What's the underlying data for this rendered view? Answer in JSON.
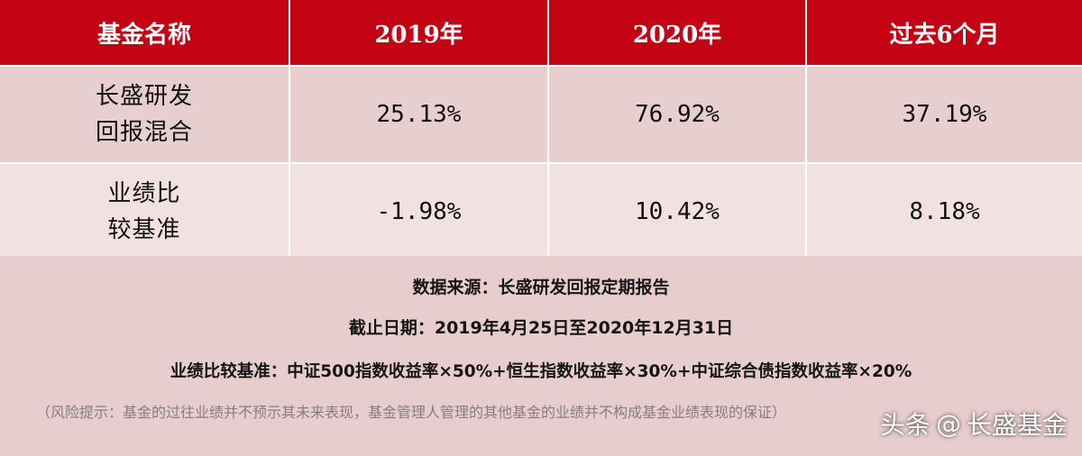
{
  "table": {
    "headers": [
      "基金名称",
      "2019年",
      "2020年",
      "过去6个月"
    ],
    "rows": [
      {
        "name_line1": "长盛研发",
        "name_line2": "回报混合",
        "v2019": "25.13%",
        "v2020": "76.92%",
        "v6m": "37.19%"
      },
      {
        "name_line1": "业绩比",
        "name_line2": "较基准",
        "v2019": "-1.98%",
        "v2020": "10.42%",
        "v6m": "8.18%"
      }
    ]
  },
  "notes": {
    "source": "数据来源：长盛研发回报定期报告",
    "date_range": "截止日期：2019年4月25日至2020年12月31日",
    "benchmark": "业绩比较基准：中证500指数收益率×50%+恒生指数收益率×30%+中证综合债指数收益率×20%",
    "risk": "（风险提示：基金的过往业绩并不预示其未来表现，基金管理人管理的其他基金的业绩并不构成基金业绩表现的保证）"
  },
  "watermark": {
    "prefix": "头条",
    "at": "@",
    "account": "长盛基金"
  },
  "colors": {
    "header_bg": "#c40414",
    "row1_bg": "#e8cfcf",
    "row2_bg": "#f1e1e1",
    "notes_bg": "#e7cdcd"
  }
}
